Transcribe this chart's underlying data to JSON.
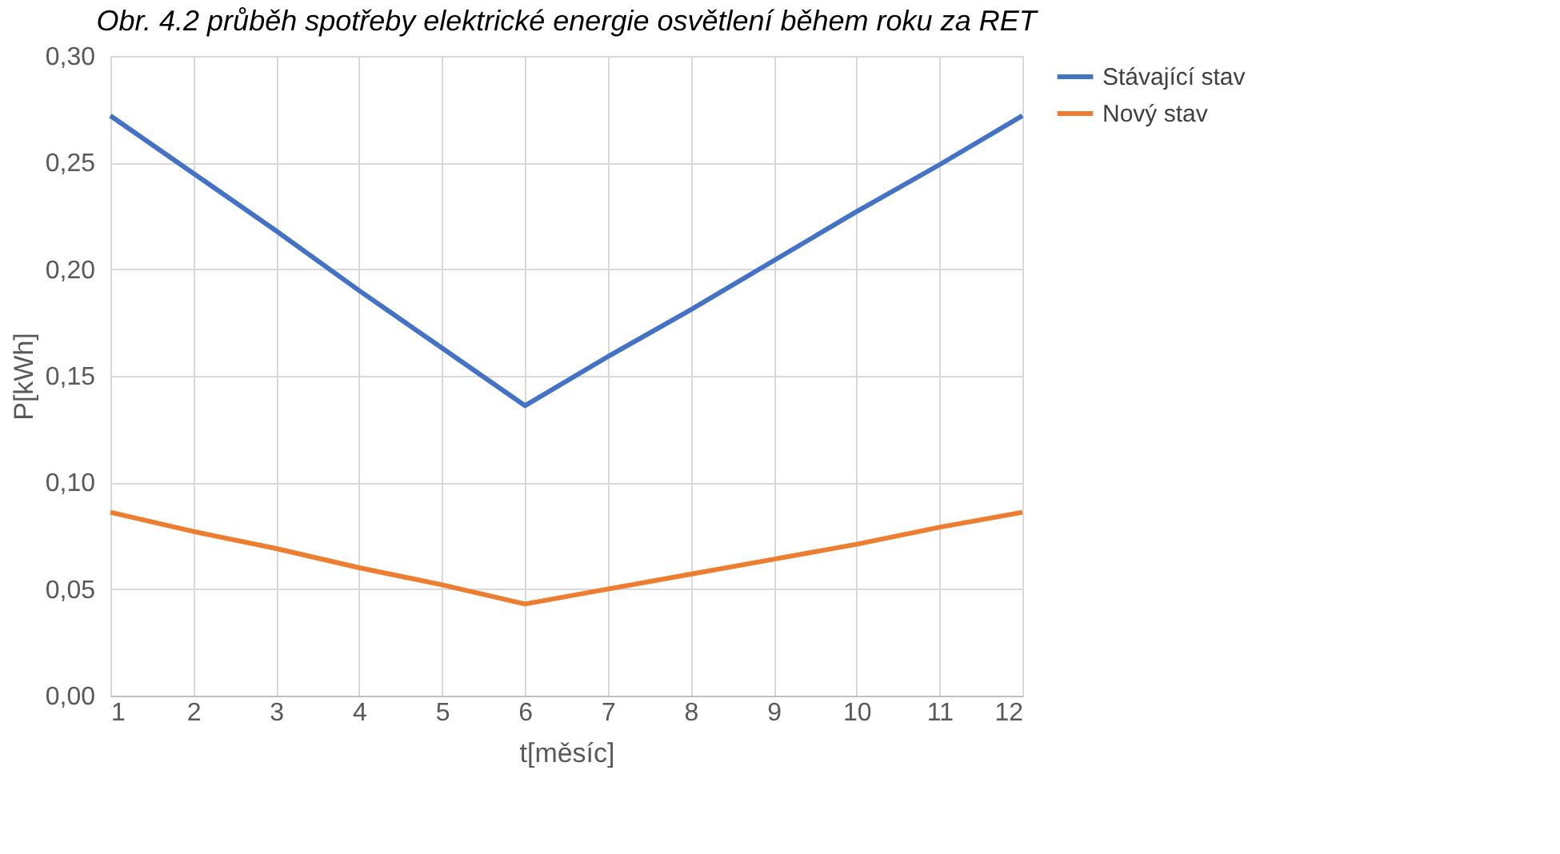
{
  "chart_data": {
    "type": "line",
    "title": "Obr. 4.2 průběh spotřeby elektrické energie osvětlení během roku za RET",
    "xlabel": "t[měsíc]",
    "ylabel": "P[kWh]",
    "x": [
      1,
      2,
      3,
      4,
      5,
      6,
      7,
      8,
      9,
      10,
      11,
      12
    ],
    "series": [
      {
        "name": "Stávající stav",
        "color": "#4472c4",
        "values": [
          0.272,
          0.245,
          0.218,
          0.19,
          0.163,
          0.136,
          0.159,
          0.181,
          0.204,
          0.227,
          0.249,
          0.272
        ]
      },
      {
        "name": "Nový stav",
        "color": "#ed7d31",
        "values": [
          0.086,
          0.077,
          0.069,
          0.06,
          0.052,
          0.043,
          0.05,
          0.057,
          0.064,
          0.071,
          0.079,
          0.086
        ]
      }
    ],
    "xlim": [
      1,
      12
    ],
    "xticks": [
      1,
      2,
      3,
      4,
      5,
      6,
      7,
      8,
      9,
      10,
      11,
      12
    ],
    "ylim": [
      0,
      0.3
    ],
    "yticks": [
      {
        "value": 0,
        "label": "0,00"
      },
      {
        "value": 0.05,
        "label": "0,05"
      },
      {
        "value": 0.1,
        "label": "0,10"
      },
      {
        "value": 0.15,
        "label": "0,15"
      },
      {
        "value": 0.2,
        "label": "0,20"
      },
      {
        "value": 0.25,
        "label": "0,25"
      },
      {
        "value": 0.3,
        "label": "0,30"
      }
    ],
    "grid": true,
    "legend": "right",
    "marker": "none",
    "line_style": "solid"
  }
}
